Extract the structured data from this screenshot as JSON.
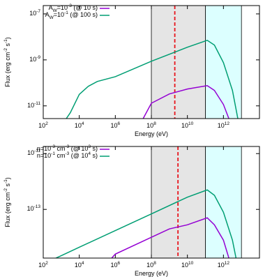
{
  "chart_data": [
    {
      "type": "line",
      "log_x": true,
      "log_y": true,
      "xlabel": "Energy (eV)",
      "ylabel": "Flux (erg cm^{-2} s^{-1})",
      "xlim": [
        100,
        100000000000000
      ],
      "ylim": [
        2.8e-12,
        2.3e-07
      ],
      "xticks": [
        {
          "value": 100,
          "label": "10^{2}"
        },
        {
          "value": 10000,
          "label": "10^{4}"
        },
        {
          "value": 1000000,
          "label": "10^{6}"
        },
        {
          "value": 100000000,
          "label": "10^{8}"
        },
        {
          "value": 10000000000,
          "label": "10^{10}"
        },
        {
          "value": 1000000000000,
          "label": "10^{12}"
        }
      ],
      "yticks": [
        {
          "value": 1e-07,
          "label": "10^{-7}"
        },
        {
          "value": 1e-09,
          "label": "10^{-9}"
        },
        {
          "value": 1e-11,
          "label": "10^{-11}"
        }
      ],
      "regions": [
        {
          "from": 100000000,
          "to": 100000000000,
          "color": "#e5e5e5"
        },
        {
          "from": 100000000000,
          "to": 10000000000000,
          "color": "#dcffff"
        }
      ],
      "vline": {
        "value": 2000000000,
        "color": "#e8141c"
      },
      "legend": "upper left",
      "series": [
        {
          "name": "A_{W}=10^{-3} (@ 10 s)",
          "color": "#9400d3",
          "x": [
            35000000,
            100000000,
            1000000000,
            10000000000,
            126000000000,
            316000000000,
            1000000000000,
            2000000000000
          ],
          "values": [
            2.8e-12,
            1.3e-11,
            3.3e-11,
            5.4e-11,
            7.6e-11,
            4.7e-11,
            1.15e-11,
            2.8e-12
          ]
        },
        {
          "name": "A_{W}=10^{-1} (@ 100 s)",
          "color": "#009e73",
          "x": [
            1900,
            3162,
            10000,
            31620,
            100000,
            1000000,
            100000000,
            10000000000,
            126000000000,
            316000000000,
            1000000000000,
            3160000000000,
            6300000000000
          ],
          "values": [
            2.8e-12,
            5e-12,
            3.16e-11,
            7.1e-11,
            1.15e-10,
            1.86e-10,
            8.7e-10,
            3.55e-09,
            7.1e-09,
            4.4e-09,
            7.6e-10,
            4.7e-11,
            2.8e-12
          ]
        }
      ]
    },
    {
      "type": "line",
      "log_x": true,
      "log_y": true,
      "xlabel": "Energy (eV)",
      "ylabel": "Flux (erg cm^{-2} s^{-1})",
      "xlim": [
        100,
        100000000000000
      ],
      "ylim": [
        1.8e-15,
        1.8e-11
      ],
      "xticks": [
        {
          "value": 100,
          "label": "10^{2}"
        },
        {
          "value": 10000,
          "label": "10^{4}"
        },
        {
          "value": 1000000,
          "label": "10^{6}"
        },
        {
          "value": 100000000,
          "label": "10^{8}"
        },
        {
          "value": 10000000000,
          "label": "10^{10}"
        },
        {
          "value": 1000000000000,
          "label": "10^{12}"
        }
      ],
      "yticks": [
        {
          "value": 1e-11,
          "label": "10^{-11}"
        },
        {
          "value": 1e-13,
          "label": "10^{-13}"
        }
      ],
      "regions": [
        {
          "from": 100000000,
          "to": 100000000000,
          "color": "#e5e5e5"
        },
        {
          "from": 100000000000,
          "to": 10000000000000,
          "color": "#dcffff"
        }
      ],
      "vline": {
        "value": 3000000000,
        "color": "#e8141c"
      },
      "legend": "upper left",
      "series": [
        {
          "name": "n=10^{-3} cm^{-3} (@ 10^{3} s)",
          "color": "#9400d3",
          "x": [
            630000,
            1000000,
            100000000,
            1000000000,
            10000000000,
            126000000000,
            316000000000,
            1000000000000,
            2000000000000
          ],
          "values": [
            1.8e-15,
            2.5e-15,
            1e-14,
            2e-14,
            2.8e-14,
            5e-14,
            2.8e-14,
            7.9e-15,
            1.8e-15
          ]
        },
        {
          "name": "n=10^{-1} cm^{-3} (@ 10^{4} s)",
          "color": "#009e73",
          "x": [
            500,
            1000,
            10000,
            1000000,
            100000000,
            10000000000,
            126000000000,
            316000000000,
            1000000000000,
            3160000000000,
            5000000000000
          ],
          "values": [
            1.8e-15,
            2.2e-15,
            4.4e-15,
            1.74e-14,
            6.9e-14,
            2.75e-13,
            5e-13,
            3.2e-13,
            7.9e-14,
            7.9e-15,
            1.8e-15
          ]
        }
      ]
    }
  ]
}
